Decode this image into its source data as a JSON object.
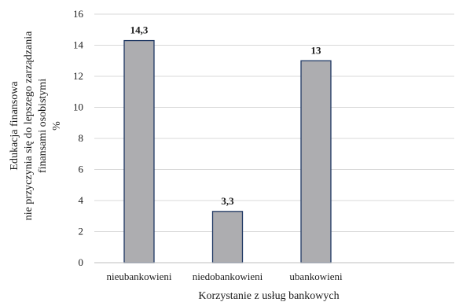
{
  "chart_data": {
    "type": "bar",
    "categories": [
      "nieubankowieni",
      "niedobankowieni",
      "ubankowieni"
    ],
    "values": [
      14.3,
      3.3,
      13
    ],
    "data_labels": [
      "14,3",
      "3,3",
      "13"
    ],
    "yticks": [
      0,
      2,
      4,
      6,
      8,
      10,
      12,
      14,
      16
    ],
    "ylim": [
      0,
      16
    ],
    "xlabel": "Korzystanie z usług bankowych",
    "ylabel_lines": [
      "Edukacja finansowa",
      "nie przyczynia się do lepszego zarządzania",
      "finansami osobistymi",
      "%"
    ],
    "grid": true,
    "legend": "none",
    "colors": {
      "bar_fill": "#adadb0",
      "bar_stroke": "#1f3864",
      "grid": "#d9d9d9",
      "axis": "#bfbfbf"
    }
  }
}
